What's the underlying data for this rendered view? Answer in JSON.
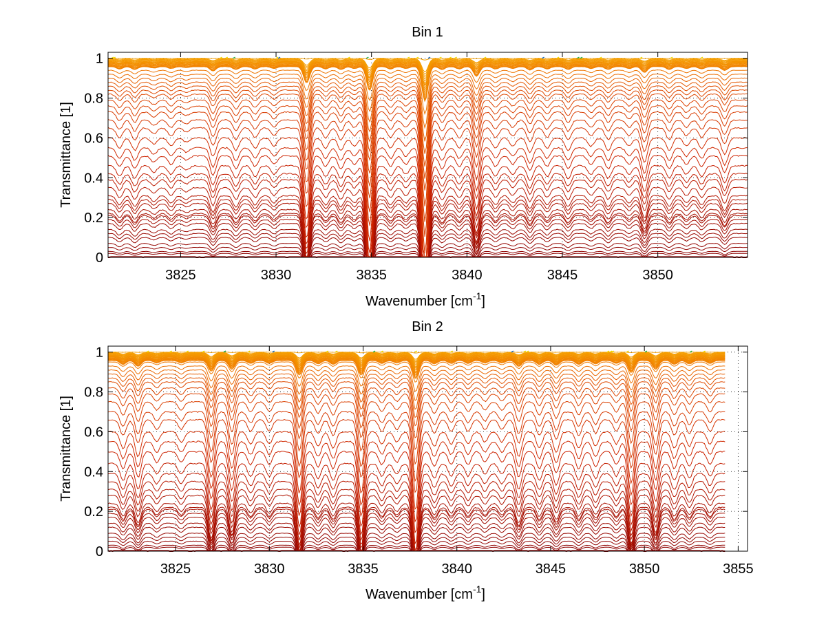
{
  "chart_data": [
    {
      "type": "line",
      "title": "Bin 1",
      "xlabel_base": "Wavenumber [cm",
      "xlabel_sup": "-1",
      "xlabel_close": "]",
      "ylabel": "Transmittance [1]",
      "xlim": [
        3821.2,
        3854.7
      ],
      "ylim": [
        0,
        1.03
      ],
      "xticks": [
        3825,
        3830,
        3835,
        3840,
        3845,
        3850
      ],
      "yticks": [
        0,
        0.2,
        0.4,
        0.6,
        0.8,
        1
      ],
      "xtick_labels": [
        "3825",
        "3830",
        "3835",
        "3840",
        "3845",
        "3850"
      ],
      "ytick_labels": [
        "0",
        "0.2",
        "0.4",
        "0.6",
        "0.8",
        "1"
      ],
      "grid": "dotted",
      "legend": "none",
      "x_end": 3854.7,
      "curve_count": 52,
      "baseline_levels_approx": [
        0.0,
        0.02,
        0.03,
        0.05,
        0.07,
        0.1,
        0.12,
        0.14,
        0.17,
        0.19,
        0.21,
        0.22,
        0.24,
        0.27,
        0.29,
        0.31,
        0.35,
        0.39,
        0.42,
        0.46,
        0.51,
        0.55,
        0.6,
        0.65,
        0.69,
        0.73,
        0.76,
        0.79,
        0.82,
        0.84,
        0.86,
        0.88,
        0.9,
        0.92,
        0.94,
        0.96,
        0.98,
        1.0
      ],
      "absorption_lines": [
        {
          "x": 3821.8,
          "depth": 0.05
        },
        {
          "x": 3822.6,
          "depth": 0.06
        },
        {
          "x": 3823.6,
          "depth": 0.03
        },
        {
          "x": 3824.5,
          "depth": 0.04
        },
        {
          "x": 3825.3,
          "depth": 0.02
        },
        {
          "x": 3826.7,
          "depth": 0.09
        },
        {
          "x": 3827.9,
          "depth": 0.06
        },
        {
          "x": 3828.9,
          "depth": 0.05
        },
        {
          "x": 3829.9,
          "depth": 0.04
        },
        {
          "x": 3831.6,
          "depth": 0.34
        },
        {
          "x": 3832.6,
          "depth": 0.05
        },
        {
          "x": 3833.4,
          "depth": 0.06
        },
        {
          "x": 3834.1,
          "depth": 0.04
        },
        {
          "x": 3834.9,
          "depth": 0.5
        },
        {
          "x": 3836.0,
          "depth": 0.05
        },
        {
          "x": 3836.8,
          "depth": 0.04
        },
        {
          "x": 3837.8,
          "depth": 0.72
        },
        {
          "x": 3838.7,
          "depth": 0.06
        },
        {
          "x": 3839.6,
          "depth": 0.05
        },
        {
          "x": 3840.5,
          "depth": 0.2
        },
        {
          "x": 3841.5,
          "depth": 0.05
        },
        {
          "x": 3842.4,
          "depth": 0.04
        },
        {
          "x": 3843.3,
          "depth": 0.07
        },
        {
          "x": 3844.2,
          "depth": 0.05
        },
        {
          "x": 3845.3,
          "depth": 0.06
        },
        {
          "x": 3846.5,
          "depth": 0.04
        },
        {
          "x": 3847.4,
          "depth": 0.06
        },
        {
          "x": 3848.5,
          "depth": 0.04
        },
        {
          "x": 3849.3,
          "depth": 0.12
        },
        {
          "x": 3850.6,
          "depth": 0.06
        },
        {
          "x": 3851.5,
          "depth": 0.04
        },
        {
          "x": 3852.3,
          "depth": 0.05
        },
        {
          "x": 3853.5,
          "depth": 0.08
        }
      ]
    },
    {
      "type": "line",
      "title": "Bin 2",
      "xlabel_base": "Wavenumber [cm",
      "xlabel_sup": "-1",
      "xlabel_close": "]",
      "ylabel": "Transmittance [1]",
      "xlim": [
        3821.4,
        3855.5
      ],
      "ylim": [
        0,
        1.03
      ],
      "xticks": [
        3825,
        3830,
        3835,
        3840,
        3845,
        3850,
        3855
      ],
      "yticks": [
        0,
        0.2,
        0.4,
        0.6,
        0.8,
        1
      ],
      "xtick_labels": [
        "3825",
        "3830",
        "3835",
        "3840",
        "3845",
        "3850",
        "3855"
      ],
      "ytick_labels": [
        "0",
        "0.2",
        "0.4",
        "0.6",
        "0.8",
        "1"
      ],
      "grid": "dotted",
      "legend": "none",
      "x_end": 3854.3,
      "curve_count": 52,
      "baseline_levels_approx": [
        0.0,
        0.02,
        0.03,
        0.05,
        0.07,
        0.09,
        0.12,
        0.14,
        0.17,
        0.19,
        0.21,
        0.22,
        0.24,
        0.28,
        0.31,
        0.35,
        0.39,
        0.44,
        0.5,
        0.55,
        0.6,
        0.66,
        0.7,
        0.75,
        0.79,
        0.82,
        0.85,
        0.87,
        0.89,
        0.91,
        0.93,
        0.95,
        0.97,
        0.98,
        1.0
      ],
      "absorption_lines": [
        {
          "x": 3822.2,
          "depth": 0.08
        },
        {
          "x": 3823.0,
          "depth": 0.12
        },
        {
          "x": 3824.0,
          "depth": 0.05
        },
        {
          "x": 3825.3,
          "depth": 0.05
        },
        {
          "x": 3826.9,
          "depth": 0.22
        },
        {
          "x": 3828.0,
          "depth": 0.18
        },
        {
          "x": 3829.0,
          "depth": 0.06
        },
        {
          "x": 3830.0,
          "depth": 0.06
        },
        {
          "x": 3831.6,
          "depth": 0.3
        },
        {
          "x": 3832.6,
          "depth": 0.07
        },
        {
          "x": 3833.4,
          "depth": 0.08
        },
        {
          "x": 3834.9,
          "depth": 0.3
        },
        {
          "x": 3836.0,
          "depth": 0.06
        },
        {
          "x": 3836.8,
          "depth": 0.05
        },
        {
          "x": 3837.8,
          "depth": 0.38
        },
        {
          "x": 3838.8,
          "depth": 0.07
        },
        {
          "x": 3839.7,
          "depth": 0.06
        },
        {
          "x": 3840.6,
          "depth": 0.06
        },
        {
          "x": 3841.5,
          "depth": 0.05
        },
        {
          "x": 3842.4,
          "depth": 0.05
        },
        {
          "x": 3843.3,
          "depth": 0.12
        },
        {
          "x": 3844.4,
          "depth": 0.08
        },
        {
          "x": 3845.3,
          "depth": 0.1
        },
        {
          "x": 3846.5,
          "depth": 0.08
        },
        {
          "x": 3847.4,
          "depth": 0.07
        },
        {
          "x": 3848.5,
          "depth": 0.06
        },
        {
          "x": 3849.3,
          "depth": 0.25
        },
        {
          "x": 3850.6,
          "depth": 0.18
        },
        {
          "x": 3851.6,
          "depth": 0.08
        },
        {
          "x": 3852.4,
          "depth": 0.07
        },
        {
          "x": 3853.5,
          "depth": 0.06
        }
      ]
    }
  ],
  "colors": {
    "dark_red": "#8b0000",
    "red": "#cc2200",
    "orange_red": "#e04a00",
    "orange": "#f07a00",
    "amber": "#f5a000",
    "yellow": "#f0d800",
    "green": "#2ab04a",
    "blue": "#1a6ec8",
    "grid": "#000000",
    "axis": "#000000"
  }
}
